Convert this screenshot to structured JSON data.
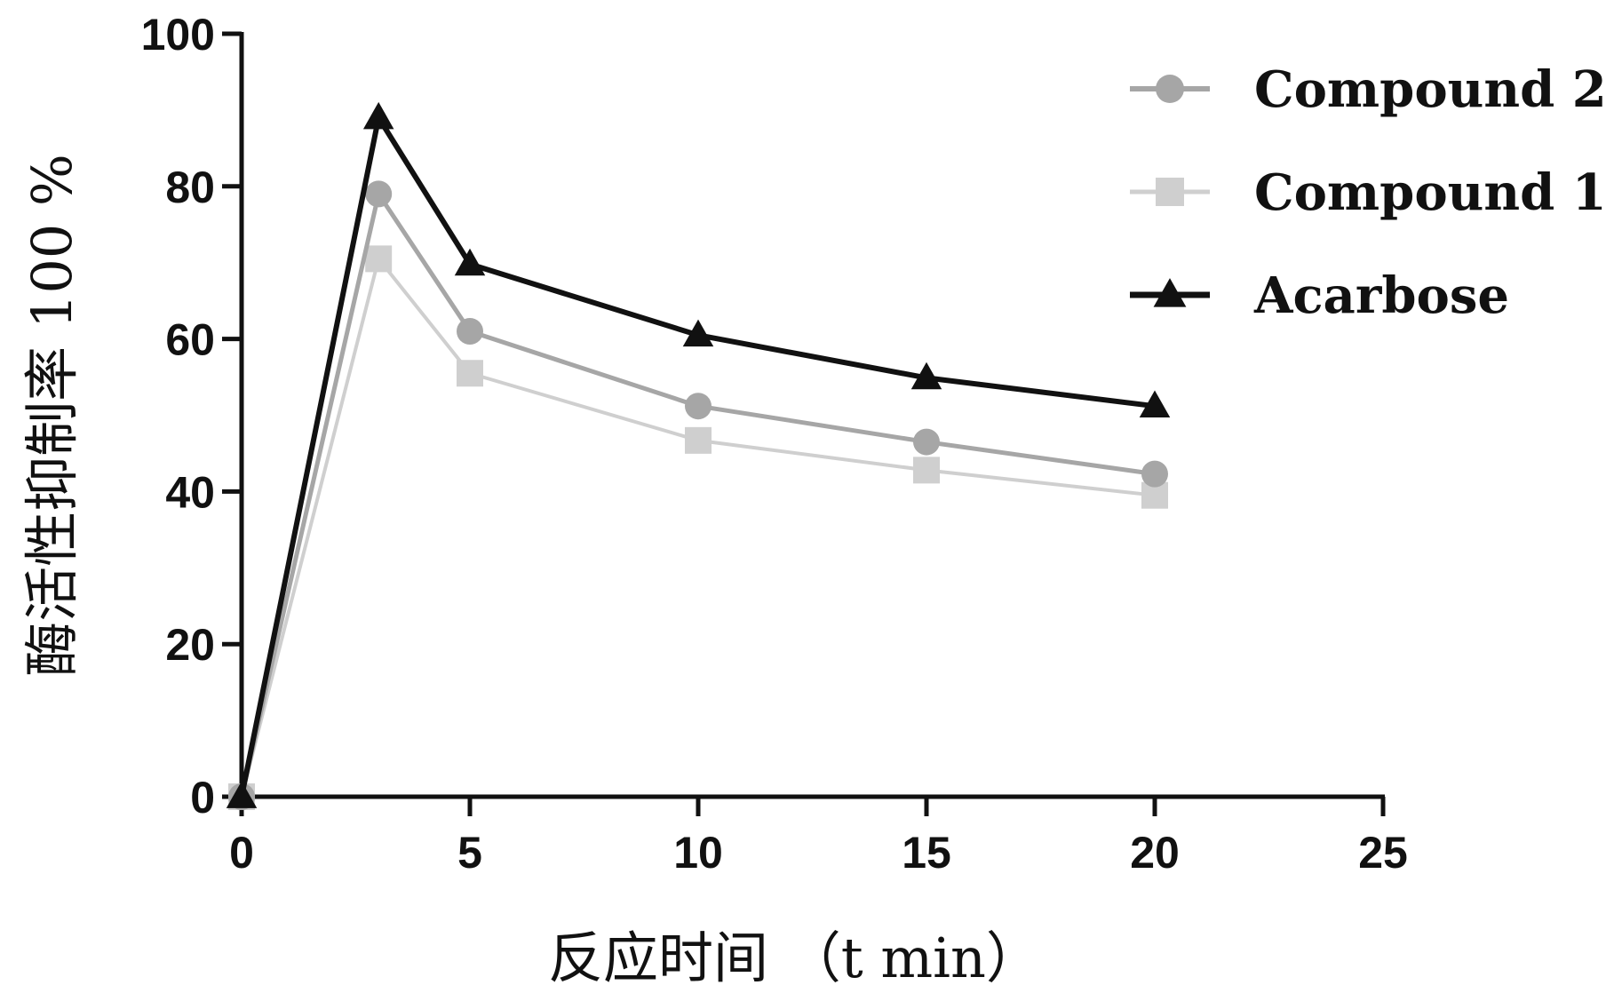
{
  "chart_data": {
    "type": "line",
    "title": "",
    "xlabel": "反应时间 （t min）",
    "ylabel": "酶活性抑制率 100 %",
    "xlim": [
      0,
      25
    ],
    "ylim": [
      0,
      100
    ],
    "xticks": [
      0,
      5,
      10,
      15,
      20,
      25
    ],
    "yticks": [
      0,
      20,
      40,
      60,
      80,
      100
    ],
    "grid": false,
    "legend_position": "top-right",
    "series": [
      {
        "name": "Compound 2",
        "marker": "circle",
        "color": "#a6a6a6",
        "x": [
          0,
          3,
          5,
          10,
          15,
          20
        ],
        "y": [
          0,
          79,
          61,
          51.2,
          46.5,
          42.3
        ]
      },
      {
        "name": "Compound 1",
        "marker": "square",
        "color": "#cfcfcf",
        "x": [
          0,
          3,
          5,
          10,
          15,
          20
        ],
        "y": [
          0,
          70.5,
          55.5,
          46.7,
          42.8,
          39.5
        ]
      },
      {
        "name": "Acarbose",
        "marker": "triangle",
        "color": "#111111",
        "x": [
          0,
          3,
          5,
          10,
          15,
          20
        ],
        "y": [
          0,
          89,
          69.8,
          60.5,
          54.9,
          51.2
        ]
      }
    ]
  }
}
